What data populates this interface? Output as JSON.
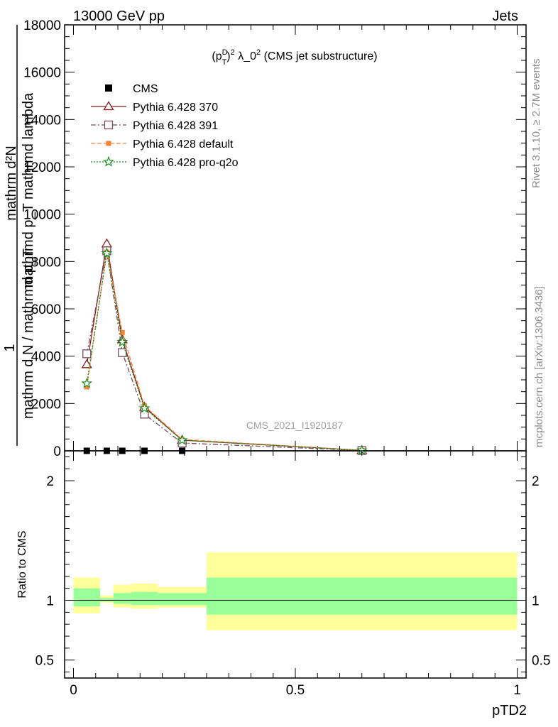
{
  "header": {
    "left": "13000 GeV pp",
    "right": "Jets"
  },
  "side_text": {
    "version": "Rivet 3.1.10, ≥ 2.7M events",
    "source": "mcplots.cern.ch [arXiv:1306.3436]"
  },
  "watermark": "CMS_2021_I1920187",
  "chart_data": [
    {
      "type": "line",
      "title_parts": {
        "pre": "(p",
        "sup": "D",
        "sub": "T",
        "post": ")",
        "exp": "2",
        "mid": " λ_0",
        "exp2": "2",
        "tail": " (CMS jet substructure)"
      },
      "ylabel": "mathrm d²N / mathrm d p_T mathrmd lambda  —  1/mathrm d N / mathrmd p_T",
      "ylabel_lines": [
        "mathrm d²N",
        "mathrmd p_T mathrmd lambda",
        "1",
        "mathrm d N / mathrmd p_T"
      ],
      "ylim": [
        0,
        18000
      ],
      "yticks": [
        0,
        2000,
        4000,
        6000,
        8000,
        10000,
        12000,
        14000,
        16000,
        18000
      ],
      "ytick_labels": [
        "0",
        "2000",
        "4000",
        "6000",
        "8000",
        "10000",
        "12000",
        "14000",
        "16000",
        "18000"
      ],
      "xlim": [
        -0.02,
        1.02
      ],
      "legend_position": "top-left",
      "series": [
        {
          "name": "CMS",
          "color": "#000000",
          "marker": "square-filled",
          "dash": "none",
          "x": [
            0.03,
            0.075,
            0.11,
            0.16,
            0.245,
            0.65
          ],
          "y": [
            0,
            0,
            0,
            0,
            0,
            0
          ]
        },
        {
          "name": "Pythia 6.428 370",
          "color": "#8b1a1a",
          "marker": "triangle-open",
          "dash": "solid",
          "x": [
            0.03,
            0.075,
            0.11,
            0.16,
            0.245,
            0.65
          ],
          "y": [
            3650,
            8750,
            4700,
            1850,
            450,
            20
          ]
        },
        {
          "name": "Pythia 6.428 391",
          "color": "#7a4a5e",
          "marker": "square-open",
          "dash": "dashdot",
          "x": [
            0.03,
            0.075,
            0.11,
            0.16,
            0.245,
            0.65
          ],
          "y": [
            4100,
            8450,
            4150,
            1550,
            330,
            15
          ]
        },
        {
          "name": "Pythia 6.428 default",
          "color": "#f5833a",
          "marker": "square-filled",
          "dash": "dashed",
          "x": [
            0.03,
            0.075,
            0.11,
            0.16,
            0.245,
            0.65
          ],
          "y": [
            2700,
            8400,
            5000,
            1900,
            480,
            20
          ]
        },
        {
          "name": "Pythia 6.428 pro-q2o",
          "color": "#1a8c1a",
          "marker": "star-open",
          "dash": "dotted",
          "x": [
            0.03,
            0.075,
            0.11,
            0.16,
            0.245,
            0.65
          ],
          "y": [
            2850,
            8350,
            4600,
            1800,
            450,
            20
          ]
        }
      ]
    },
    {
      "type": "area",
      "ylabel": "Ratio to CMS",
      "xlabel": "pTD2",
      "ylim": [
        0.35,
        2.25
      ],
      "yticks": [
        0.5,
        1,
        2
      ],
      "ytick_labels": [
        "0.5",
        "1",
        "2"
      ],
      "xticks": [
        0,
        0.5,
        1
      ],
      "xtick_labels": [
        "0",
        "0.5",
        "1"
      ],
      "xlim": [
        -0.02,
        1.02
      ],
      "reference_line": 1,
      "bands": [
        {
          "x0": 0.0,
          "x1": 0.06,
          "outer": [
            0.89,
            1.19
          ],
          "inner": [
            0.95,
            1.1
          ]
        },
        {
          "x0": 0.06,
          "x1": 0.09,
          "outer": [
            0.98,
            1.04
          ],
          "inner": [
            0.99,
            1.02
          ]
        },
        {
          "x0": 0.09,
          "x1": 0.13,
          "outer": [
            0.94,
            1.13
          ],
          "inner": [
            0.97,
            1.06
          ]
        },
        {
          "x0": 0.13,
          "x1": 0.19,
          "outer": [
            0.93,
            1.14
          ],
          "inner": [
            0.96,
            1.07
          ]
        },
        {
          "x0": 0.19,
          "x1": 0.3,
          "outer": [
            0.94,
            1.11
          ],
          "inner": [
            0.96,
            1.06
          ]
        },
        {
          "x0": 0.3,
          "x1": 1.0,
          "outer": [
            0.75,
            1.4
          ],
          "inner": [
            0.88,
            1.19
          ]
        }
      ],
      "band_colors": {
        "outer": "#ffff99",
        "inner": "#99ff99"
      }
    }
  ]
}
